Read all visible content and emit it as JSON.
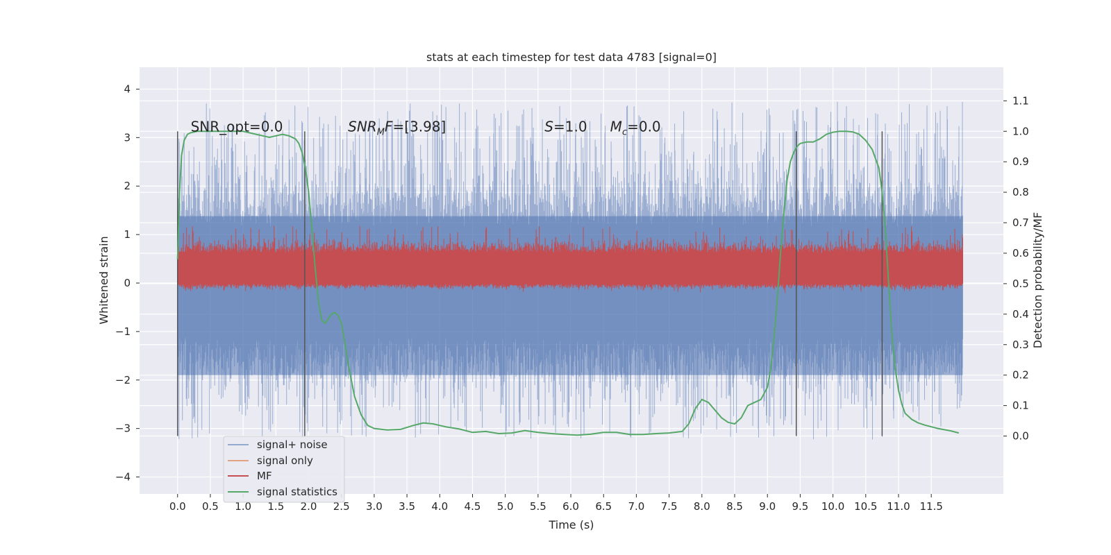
{
  "chart_data": {
    "type": "line",
    "title": "stats at each timestep for test data 4783 [signal=0]",
    "xlabel": "Time (s)",
    "ylabel": "Whitened strain",
    "y2label": "Detection probability/MF",
    "xlim": [
      -0.58,
      12.6
    ],
    "ylim": [
      -4.35,
      4.45
    ],
    "y2lim": [
      -0.19,
      1.21
    ],
    "xticks": [
      0.0,
      0.5,
      1.0,
      1.5,
      2.0,
      2.5,
      3.0,
      3.5,
      4.0,
      4.5,
      5.0,
      5.5,
      6.0,
      6.5,
      7.0,
      7.5,
      8.0,
      8.5,
      9.0,
      9.5,
      10.0,
      10.5,
      11.0,
      11.5
    ],
    "xtick_labels": [
      "0.0",
      "0.5",
      "1.0",
      "1.5",
      "2.0",
      "2.5",
      "3.0",
      "3.5",
      "4.0",
      "4.5",
      "5.0",
      "5.5",
      "6.0",
      "6.5",
      "7.0",
      "7.5",
      "8.0",
      "8.5",
      "9.0",
      "9.5",
      "10.0",
      "10.5",
      "11.0",
      "11.5"
    ],
    "yticks": [
      -4,
      -3,
      -2,
      -1,
      0,
      1,
      2,
      3,
      4
    ],
    "ytick_labels": [
      "−4",
      "−3",
      "−2",
      "−1",
      "0",
      "1",
      "2",
      "3",
      "4"
    ],
    "y2ticks": [
      0.0,
      0.1,
      0.2,
      0.3,
      0.4,
      0.5,
      0.6,
      0.7,
      0.8,
      0.9,
      1.0,
      1.1
    ],
    "y2tick_labels": [
      "0.0",
      "0.1",
      "0.2",
      "0.3",
      "0.4",
      "0.5",
      "0.6",
      "0.7",
      "0.8",
      "0.9",
      "1.0",
      "1.1"
    ],
    "grid": true,
    "legend_position": "lower-left",
    "series": [
      {
        "name": "signal+ noise",
        "axis": "left",
        "color": "#4c72b0",
        "style": "dense noise band",
        "x_range": [
          0.0,
          11.98
        ],
        "typical_range": [
          -2.0,
          2.3
        ],
        "extreme_range": [
          -3.65,
          4.1
        ]
      },
      {
        "name": "signal only",
        "axis": "left",
        "color": "#dd8452",
        "values": []
      },
      {
        "name": "MF",
        "axis": "right",
        "color": "#c44e52",
        "style": "dense noise band",
        "x_range": [
          0.0,
          11.98
        ],
        "typical_range": [
          0.5,
          0.62
        ],
        "extreme_range": [
          0.48,
          0.69
        ]
      },
      {
        "name": "signal statistics",
        "axis": "right",
        "color": "#55a868",
        "x": [
          0.0,
          0.03,
          0.06,
          0.1,
          0.15,
          0.2,
          0.3,
          0.5,
          0.8,
          1.0,
          1.2,
          1.4,
          1.5,
          1.6,
          1.7,
          1.8,
          1.85,
          1.9,
          1.95,
          2.0,
          2.05,
          2.1,
          2.15,
          2.2,
          2.25,
          2.3,
          2.35,
          2.4,
          2.45,
          2.5,
          2.55,
          2.6,
          2.7,
          2.8,
          2.9,
          3.0,
          3.2,
          3.4,
          3.6,
          3.75,
          3.9,
          4.1,
          4.3,
          4.5,
          4.7,
          4.9,
          5.1,
          5.3,
          5.5,
          5.7,
          5.9,
          6.1,
          6.3,
          6.5,
          6.7,
          6.9,
          7.1,
          7.3,
          7.5,
          7.7,
          7.8,
          7.9,
          8.0,
          8.1,
          8.2,
          8.3,
          8.4,
          8.5,
          8.6,
          8.7,
          8.8,
          8.9,
          9.0,
          9.05,
          9.1,
          9.15,
          9.2,
          9.25,
          9.3,
          9.35,
          9.4,
          9.45,
          9.5,
          9.6,
          9.7,
          9.8,
          9.9,
          10.0,
          10.1,
          10.2,
          10.3,
          10.4,
          10.5,
          10.6,
          10.7,
          10.75,
          10.8,
          10.85,
          10.9,
          10.95,
          11.0,
          11.05,
          11.1,
          11.2,
          11.3,
          11.4,
          11.6,
          11.8,
          11.92
        ],
        "values": [
          0.58,
          0.8,
          0.92,
          0.97,
          0.99,
          0.995,
          1.0,
          1.0,
          1.0,
          1.0,
          0.99,
          0.98,
          0.985,
          0.99,
          0.985,
          0.975,
          0.96,
          0.93,
          0.88,
          0.8,
          0.68,
          0.55,
          0.44,
          0.38,
          0.37,
          0.385,
          0.4,
          0.405,
          0.395,
          0.37,
          0.31,
          0.24,
          0.13,
          0.07,
          0.035,
          0.025,
          0.02,
          0.022,
          0.035,
          0.043,
          0.04,
          0.03,
          0.023,
          0.012,
          0.015,
          0.008,
          0.01,
          0.018,
          0.012,
          0.008,
          0.005,
          0.003,
          0.006,
          0.012,
          0.012,
          0.005,
          0.005,
          0.008,
          0.01,
          0.015,
          0.04,
          0.09,
          0.12,
          0.11,
          0.085,
          0.06,
          0.045,
          0.04,
          0.06,
          0.1,
          0.11,
          0.12,
          0.16,
          0.22,
          0.32,
          0.45,
          0.6,
          0.73,
          0.84,
          0.9,
          0.93,
          0.95,
          0.96,
          0.965,
          0.965,
          0.975,
          0.99,
          0.997,
          1.0,
          1.0,
          0.998,
          0.99,
          0.97,
          0.94,
          0.88,
          0.8,
          0.68,
          0.5,
          0.33,
          0.22,
          0.15,
          0.105,
          0.075,
          0.055,
          0.043,
          0.036,
          0.025,
          0.017,
          0.01
        ]
      }
    ],
    "vlines": [
      0.0,
      1.94,
      9.44,
      10.75
    ],
    "vline_range": [
      0.0,
      1.0
    ],
    "annotations": [
      {
        "text": "SNR_opt=0.0",
        "x": 0.2,
        "y2": 1.0
      },
      {
        "text": "SNR_MF=[3.98]",
        "x": 2.6,
        "y2": 1.0
      },
      {
        "text": "S=1.0",
        "x": 5.6,
        "y2": 1.0
      },
      {
        "text": "M_c=0.0",
        "x": 6.6,
        "y2": 1.0
      }
    ]
  }
}
